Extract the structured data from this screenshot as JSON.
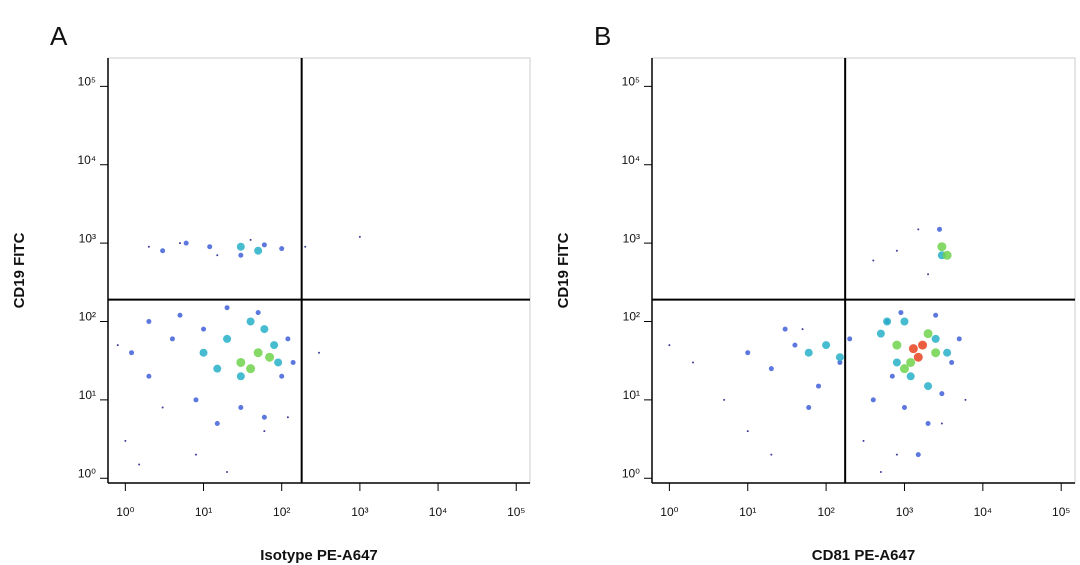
{
  "chart_data": [
    {
      "type": "scatter",
      "title": "A",
      "xlabel": "Isotype PE-A647",
      "ylabel": "CD19 FITC",
      "xscale": "log",
      "yscale": "log",
      "xlim": [
        0.6,
        150000
      ],
      "ylim": [
        0.87,
        230000
      ],
      "xticks": [
        {
          "value": 1,
          "label": "10⁰"
        },
        {
          "value": 10,
          "label": "10¹"
        },
        {
          "value": 100,
          "label": "10²"
        },
        {
          "value": 1000,
          "label": "10³"
        },
        {
          "value": 10000,
          "label": "10⁴"
        },
        {
          "value": 100000,
          "label": "10⁵"
        }
      ],
      "yticks": [
        {
          "value": 1,
          "label": "10⁰"
        },
        {
          "value": 10,
          "label": "10¹"
        },
        {
          "value": 100,
          "label": "10²"
        },
        {
          "value": 1000,
          "label": "10³"
        },
        {
          "value": 10000,
          "label": "10⁴"
        },
        {
          "value": 100000,
          "label": "10⁵"
        }
      ],
      "gates": {
        "x": 180,
        "y": 190
      },
      "series": [
        {
          "color": "#1c1c8a",
          "marker_size": 2,
          "x": [
            1,
            1.5,
            3,
            8,
            20,
            60,
            120,
            2,
            5,
            15,
            40,
            200,
            0.8,
            300,
            1000
          ],
          "y": [
            3,
            1.5,
            8,
            2,
            1.2,
            4,
            6,
            900,
            1000,
            700,
            1100,
            900,
            50,
            40,
            1200
          ]
        },
        {
          "color": "#3f5fd8",
          "marker_size": 5,
          "x": [
            1.2,
            2,
            4,
            8,
            15,
            30,
            60,
            100,
            3,
            6,
            12,
            30,
            60,
            100,
            2,
            5,
            10,
            20,
            50,
            120,
            140
          ],
          "y": [
            40,
            20,
            60,
            10,
            5,
            8,
            6,
            20,
            800,
            1000,
            900,
            700,
            950,
            850,
            100,
            120,
            80,
            150,
            130,
            60,
            30
          ]
        },
        {
          "color": "#27b0c8",
          "marker_size": 8,
          "x": [
            10,
            20,
            30,
            60,
            90,
            15,
            40,
            80,
            30,
            50
          ],
          "y": [
            40,
            60,
            20,
            80,
            30,
            25,
            100,
            50,
            900,
            800
          ]
        },
        {
          "color": "#6fd24c",
          "marker_size": 9,
          "x": [
            30,
            50,
            70,
            40
          ],
          "y": [
            30,
            40,
            35,
            25
          ]
        }
      ]
    },
    {
      "type": "scatter",
      "title": "B",
      "xlabel": "CD81 PE-A647",
      "ylabel": "CD19 FITC",
      "xscale": "log",
      "yscale": "log",
      "xlim": [
        0.6,
        150000
      ],
      "ylim": [
        0.87,
        230000
      ],
      "xticks": [
        {
          "value": 1,
          "label": "10⁰"
        },
        {
          "value": 10,
          "label": "10¹"
        },
        {
          "value": 100,
          "label": "10²"
        },
        {
          "value": 1000,
          "label": "10³"
        },
        {
          "value": 10000,
          "label": "10⁴"
        },
        {
          "value": 100000,
          "label": "10⁵"
        }
      ],
      "yticks": [
        {
          "value": 1,
          "label": "10⁰"
        },
        {
          "value": 10,
          "label": "10¹"
        },
        {
          "value": 100,
          "label": "10²"
        },
        {
          "value": 1000,
          "label": "10³"
        },
        {
          "value": 10000,
          "label": "10⁴"
        },
        {
          "value": 100000,
          "label": "10⁵"
        }
      ],
      "gates": {
        "x": 175,
        "y": 190
      },
      "series": [
        {
          "color": "#1c1c8a",
          "marker_size": 2,
          "x": [
            2,
            5,
            10,
            20,
            300,
            500,
            800,
            3000,
            6000,
            1,
            50,
            400,
            1500,
            800,
            2000
          ],
          "y": [
            30,
            10,
            4,
            2,
            3,
            1.2,
            2,
            5,
            10,
            50,
            80,
            600,
            1500,
            800,
            400
          ]
        },
        {
          "color": "#3f5fd8",
          "marker_size": 5,
          "x": [
            10,
            20,
            40,
            80,
            150,
            200,
            400,
            700,
            1000,
            2000,
            3000,
            5000,
            600,
            900,
            1500,
            2500,
            4000,
            30,
            60,
            2800
          ],
          "y": [
            40,
            25,
            50,
            15,
            30,
            60,
            10,
            20,
            8,
            5,
            12,
            60,
            100,
            130,
            2,
            120,
            30,
            80,
            8,
            1500
          ]
        },
        {
          "color": "#27b0c8",
          "marker_size": 8,
          "x": [
            60,
            100,
            150,
            500,
            800,
            1200,
            2500,
            3500,
            600,
            2000,
            1000,
            3000
          ],
          "y": [
            40,
            50,
            35,
            70,
            30,
            20,
            60,
            40,
            100,
            15,
            100,
            700
          ]
        },
        {
          "color": "#6fd24c",
          "marker_size": 9,
          "x": [
            800,
            1200,
            2000,
            2500,
            3000,
            3500,
            1000
          ],
          "y": [
            50,
            30,
            70,
            40,
            900,
            700,
            25
          ]
        },
        {
          "color": "#e8431e",
          "marker_size": 9,
          "x": [
            1300,
            1700,
            1500
          ],
          "y": [
            45,
            50,
            35
          ]
        }
      ]
    }
  ]
}
